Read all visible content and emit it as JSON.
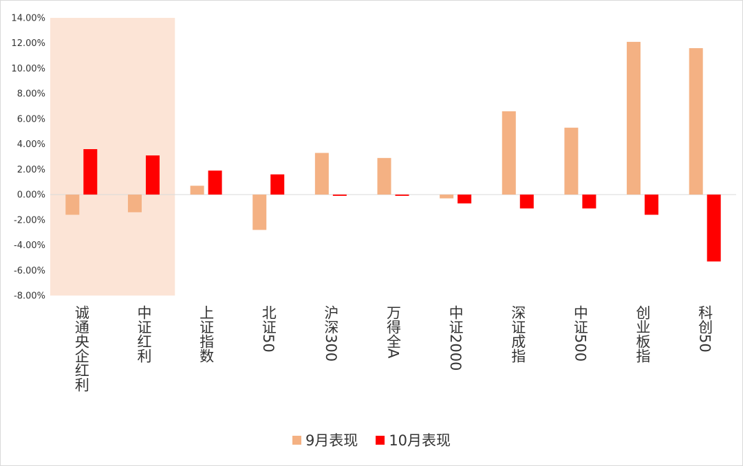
{
  "chart_data": {
    "type": "bar",
    "categories": [
      "诚通央企红利",
      "中证红利",
      "上证指数",
      "北证50",
      "沪深300",
      "万得全A",
      "中证2000",
      "深证成指",
      "中证500",
      "创业板指",
      "科创50"
    ],
    "series": [
      {
        "name": "9月表现",
        "color": "#F4B183",
        "values": [
          -1.6,
          -1.4,
          0.7,
          -2.8,
          3.3,
          2.9,
          -0.3,
          6.6,
          5.3,
          12.1,
          11.6
        ]
      },
      {
        "name": "10月表现",
        "color": "#FF0000",
        "values": [
          3.6,
          3.1,
          1.9,
          1.6,
          -0.1,
          -0.1,
          -0.7,
          -1.1,
          -1.1,
          -1.6,
          -5.3
        ]
      }
    ],
    "ylim": [
      -8,
      14
    ],
    "yticks": [
      14,
      12,
      10,
      8,
      6,
      4,
      2,
      0,
      -2,
      -4,
      -6,
      -8
    ],
    "ytick_labels": [
      "14.00%",
      "12.00%",
      "10.00%",
      "8.00%",
      "6.00%",
      "4.00%",
      "2.00%",
      "0.00%",
      "-2.00%",
      "-4.00%",
      "-6.00%",
      "-8.00%"
    ],
    "highlight": {
      "categories": [
        "诚通央企红利",
        "中证红利"
      ],
      "color": "#FCE4D6"
    },
    "grid": false,
    "legend_position": "bottom",
    "title": "",
    "xlabel": "",
    "ylabel": ""
  }
}
